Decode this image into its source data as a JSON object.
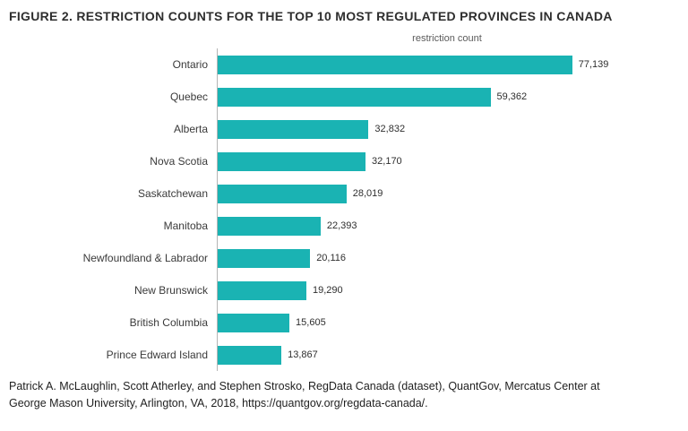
{
  "title": "FIGURE 2. RESTRICTION COUNTS FOR THE TOP 10 MOST REGULATED PROVINCES IN CANADA",
  "chart_data": {
    "type": "bar",
    "orientation": "horizontal",
    "title": "FIGURE 2. RESTRICTION COUNTS FOR THE TOP 10 MOST REGULATED PROVINCES IN CANADA",
    "axis_title": "restriction count",
    "categories": [
      "Ontario",
      "Quebec",
      "Alberta",
      "Nova Scotia",
      "Saskatchewan",
      "Manitoba",
      "Newfoundland & Labrador",
      "New Brunswick",
      "British Columbia",
      "Prince Edward Island"
    ],
    "values": [
      77139,
      59362,
      32832,
      32170,
      28019,
      22393,
      20116,
      19290,
      15605,
      13867
    ],
    "value_labels": [
      "77,139",
      "59,362",
      "32,832",
      "32,170",
      "28,019",
      "22,393",
      "20,116",
      "19,290",
      "15,605",
      "13,867"
    ],
    "bar_color": "#1ab3b3",
    "xlim": [
      0,
      100000
    ],
    "grid": false,
    "legend": "none"
  },
  "source": {
    "lines": [
      "Patrick A. McLaughlin, Scott Atherley, and Stephen Strosko, RegData Canada (dataset), QuantGov, Mercatus Center at",
      "George Mason University, Arlington, VA, 2018, https://quantgov.org/regdata-canada/."
    ]
  }
}
